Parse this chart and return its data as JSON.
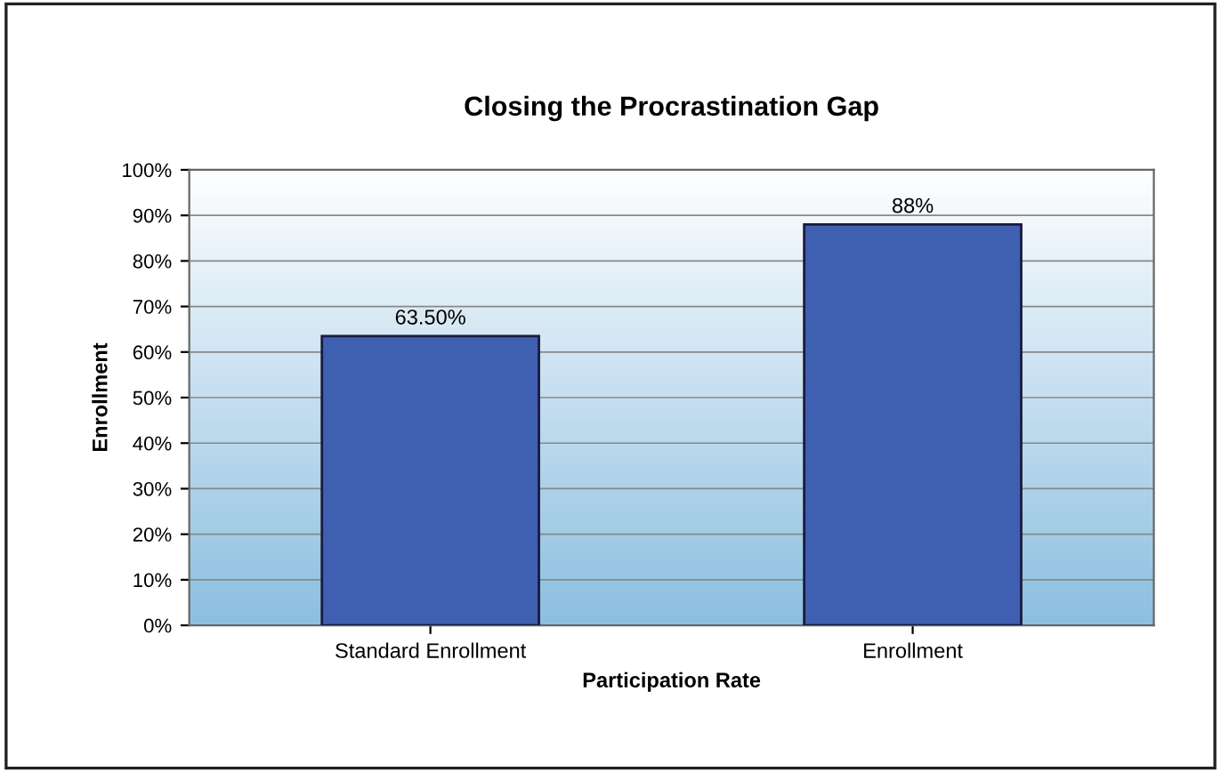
{
  "chart_data": {
    "type": "bar",
    "title": "Closing the Procrastination Gap",
    "xlabel": "Participation Rate",
    "ylabel": "Enrollment",
    "categories": [
      "Standard Enrollment",
      "Enrollment"
    ],
    "values": [
      63.5,
      88
    ],
    "value_labels": [
      "63.50%",
      "88%"
    ],
    "color": "#3f5fb0",
    "ylim": [
      0,
      100
    ],
    "yticks": [
      {
        "value": 0,
        "label": "0%"
      },
      {
        "value": 10,
        "label": "10%"
      },
      {
        "value": 20,
        "label": "20%"
      },
      {
        "value": 30,
        "label": "30%"
      },
      {
        "value": 40,
        "label": "40%"
      },
      {
        "value": 50,
        "label": "50%"
      },
      {
        "value": 60,
        "label": "60%"
      },
      {
        "value": 70,
        "label": "70%"
      },
      {
        "value": 80,
        "label": "80%"
      },
      {
        "value": 90,
        "label": "90%"
      },
      {
        "value": 100,
        "label": "100%"
      }
    ],
    "grid": "y"
  }
}
